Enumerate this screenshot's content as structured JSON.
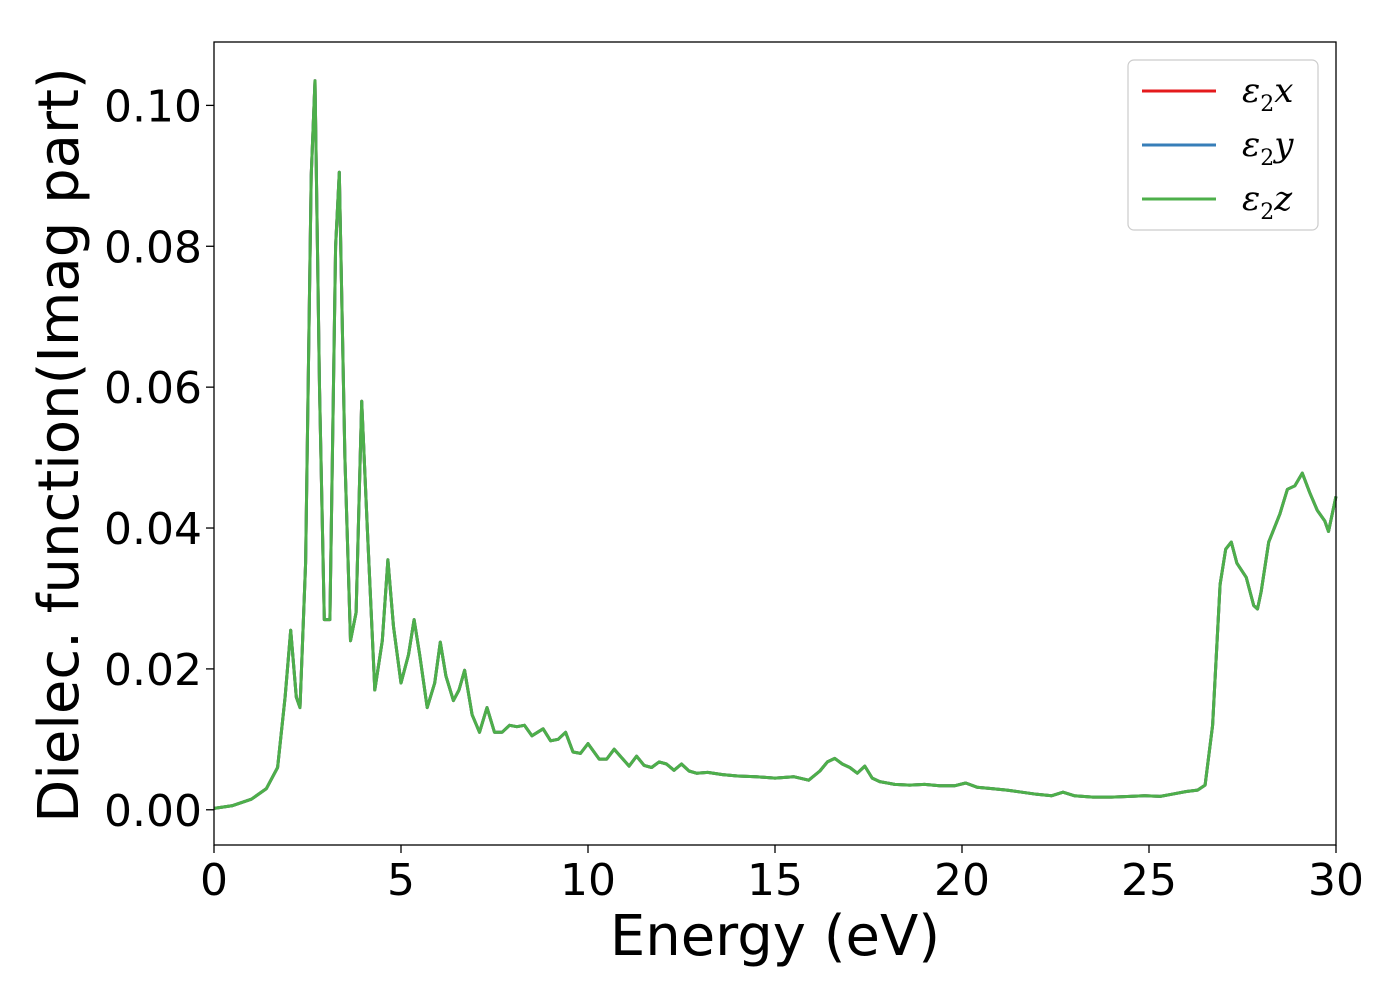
{
  "chart_data": {
    "type": "line",
    "xlabel": "Energy (eV)",
    "ylabel": "Dielec. function(Imag part)",
    "xlim": [
      0,
      30
    ],
    "ylim": [
      -0.005,
      0.109
    ],
    "xticks": [
      0,
      5,
      10,
      15,
      20,
      25,
      30
    ],
    "xtick_labels": [
      "0",
      "5",
      "10",
      "15",
      "20",
      "25",
      "30"
    ],
    "yticks": [
      0.0,
      0.02,
      0.04,
      0.06,
      0.08,
      0.1
    ],
    "ytick_labels": [
      "0.00",
      "0.02",
      "0.04",
      "0.06",
      "0.08",
      "0.10"
    ],
    "grid": false,
    "legend_position": "top-right",
    "series": [
      {
        "name": "ε2x",
        "label_symbol": "ε",
        "label_sub": "2",
        "label_var": "x",
        "color": "#e41a1c",
        "x": [
          0,
          0.5,
          1,
          1.4,
          1.7,
          1.9,
          2.05,
          2.2,
          2.3,
          2.45,
          2.6,
          2.7,
          2.82,
          2.95,
          3.1,
          3.25,
          3.35,
          3.5,
          3.65,
          3.8,
          3.95,
          4.1,
          4.3,
          4.5,
          4.65,
          4.8,
          5.0,
          5.2,
          5.35,
          5.5,
          5.7,
          5.9,
          6.05,
          6.2,
          6.4,
          6.55,
          6.7,
          6.9,
          7.1,
          7.3,
          7.5,
          7.7,
          7.9,
          8.1,
          8.3,
          8.5,
          8.8,
          9.0,
          9.2,
          9.4,
          9.6,
          9.8,
          10.0,
          10.3,
          10.5,
          10.7,
          10.9,
          11.1,
          11.3,
          11.5,
          11.7,
          11.9,
          12.1,
          12.3,
          12.5,
          12.7,
          12.9,
          13.2,
          13.6,
          14.0,
          14.5,
          15.0,
          15.5,
          15.9,
          16.2,
          16.4,
          16.6,
          16.8,
          17.0,
          17.2,
          17.4,
          17.6,
          17.8,
          18.2,
          18.6,
          19.0,
          19.4,
          19.8,
          20.1,
          20.4,
          20.8,
          21.2,
          21.6,
          22.0,
          22.4,
          22.7,
          23.0,
          23.5,
          24.0,
          24.5,
          24.9,
          25.3,
          25.6,
          26.0,
          26.3,
          26.5,
          26.7,
          26.9,
          27.05,
          27.2,
          27.35,
          27.6,
          27.8,
          27.9,
          28.0,
          28.2,
          28.5,
          28.7,
          28.9,
          29.1,
          29.3,
          29.5,
          29.7,
          29.8,
          30.0
        ],
        "values": [
          0.0002,
          0.0006,
          0.0015,
          0.003,
          0.006,
          0.016,
          0.0255,
          0.016,
          0.0145,
          0.035,
          0.09,
          0.1035,
          0.06,
          0.027,
          0.027,
          0.08,
          0.0905,
          0.05,
          0.024,
          0.028,
          0.058,
          0.04,
          0.017,
          0.024,
          0.0355,
          0.026,
          0.018,
          0.022,
          0.027,
          0.022,
          0.0145,
          0.018,
          0.0238,
          0.019,
          0.0155,
          0.017,
          0.0198,
          0.0135,
          0.011,
          0.0145,
          0.011,
          0.011,
          0.012,
          0.0118,
          0.012,
          0.0105,
          0.0115,
          0.0098,
          0.01,
          0.011,
          0.0082,
          0.008,
          0.0094,
          0.0072,
          0.0072,
          0.0086,
          0.0074,
          0.0062,
          0.0076,
          0.0063,
          0.006,
          0.0068,
          0.0065,
          0.0056,
          0.0065,
          0.0055,
          0.0052,
          0.0053,
          0.005,
          0.0048,
          0.0047,
          0.0045,
          0.0047,
          0.0042,
          0.0055,
          0.0068,
          0.0073,
          0.0065,
          0.006,
          0.0052,
          0.0062,
          0.0045,
          0.004,
          0.0036,
          0.0035,
          0.0036,
          0.0034,
          0.0034,
          0.0038,
          0.0032,
          0.003,
          0.0028,
          0.0025,
          0.0022,
          0.002,
          0.0025,
          0.002,
          0.0018,
          0.0018,
          0.0019,
          0.002,
          0.0019,
          0.0022,
          0.0026,
          0.0028,
          0.0035,
          0.012,
          0.032,
          0.037,
          0.038,
          0.035,
          0.033,
          0.029,
          0.0285,
          0.031,
          0.038,
          0.042,
          0.0455,
          0.046,
          0.0478,
          0.045,
          0.0425,
          0.041,
          0.0395,
          0.0445
        ]
      },
      {
        "name": "ε2y",
        "label_symbol": "ε",
        "label_sub": "2",
        "label_var": "y",
        "color": "#377eb8",
        "same_as": "ε2x"
      },
      {
        "name": "ε2z",
        "label_symbol": "ε",
        "label_sub": "2",
        "label_var": "z",
        "color": "#4daf4a",
        "same_as": "ε2x"
      }
    ]
  }
}
